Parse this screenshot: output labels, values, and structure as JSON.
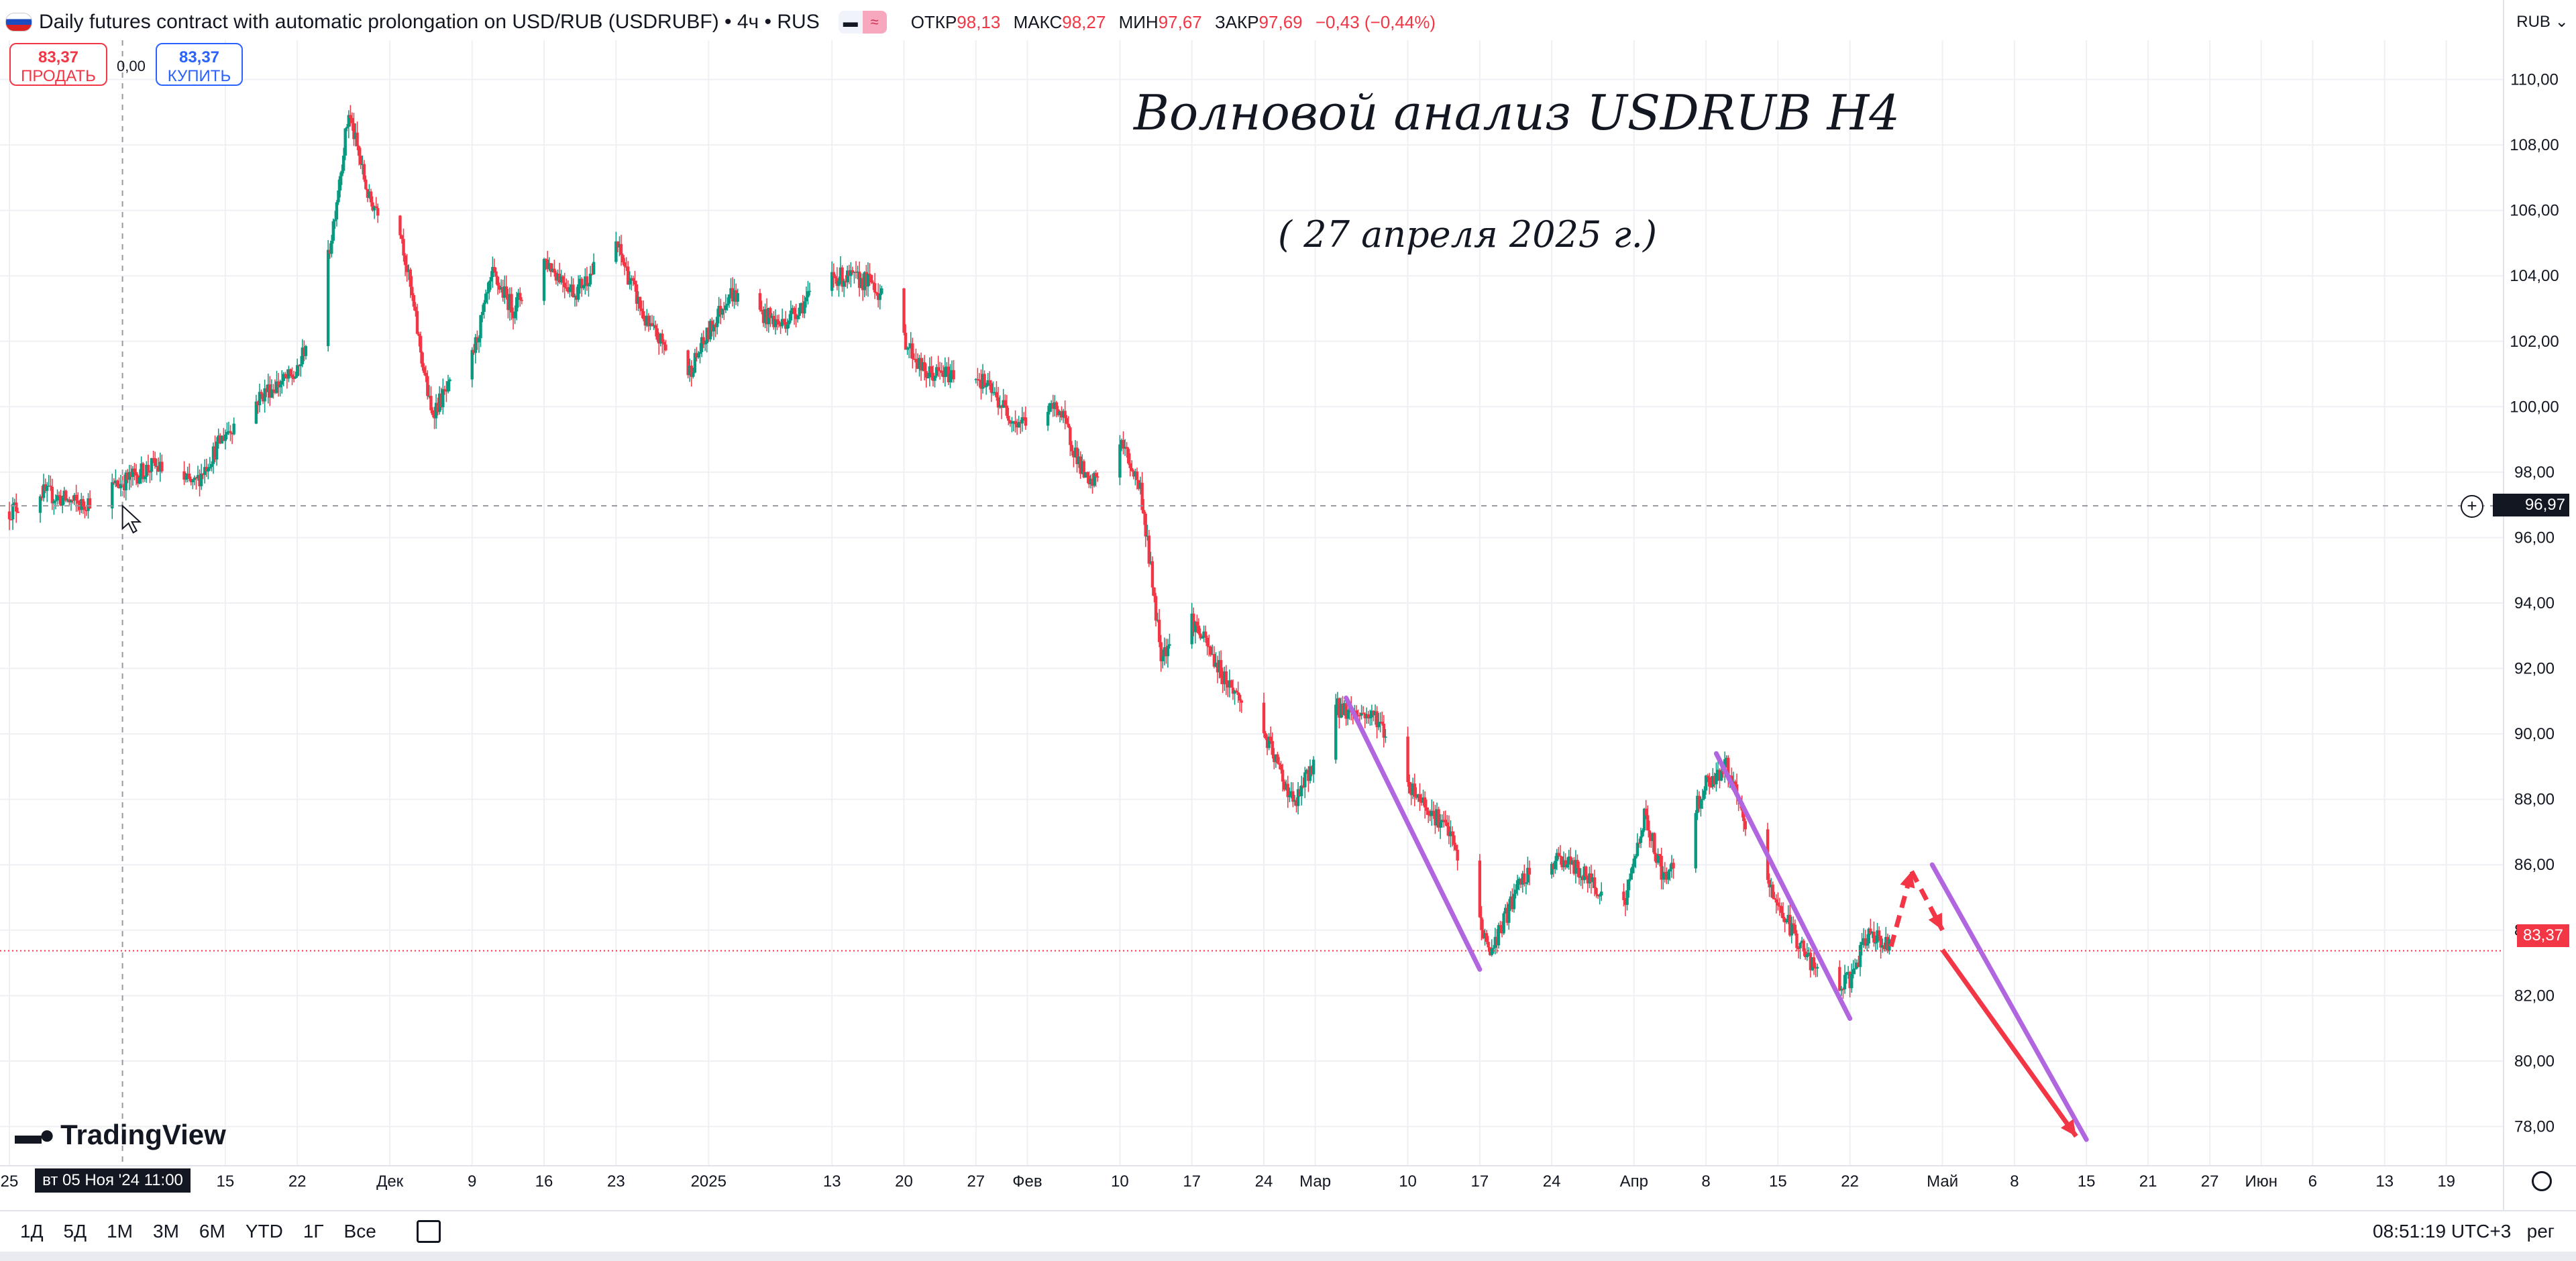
{
  "header": {
    "symbol_title": "Daily futures contract with automatic prolongation on USD/RUB (USDRUBF) • 4ч • RUS",
    "ohlc": [
      {
        "k": "ОТКР",
        "v": "98,13"
      },
      {
        "k": "МАКС",
        "v": "98,27"
      },
      {
        "k": "МИН",
        "v": "97,67"
      },
      {
        "k": "ЗАКР",
        "v": "97,69"
      },
      {
        "k": "",
        "v": "−0,43 (−0,44%)"
      }
    ],
    "pill_icon_1": "minus-icon",
    "pill_icon_2": "wave-icon",
    "currency": "RUB"
  },
  "trade": {
    "sell_price": "83,37",
    "sell_label": "ПРОДАТЬ",
    "spread": "0,00",
    "buy_price": "83,37",
    "buy_label": "КУПИТЬ"
  },
  "annotation": {
    "title": "Волновой анализ USDRUB H4",
    "subtitle": "( 27 апреля 2025  г.)"
  },
  "logo": "TradingView",
  "bottom": {
    "ranges": [
      "1Д",
      "5Д",
      "1М",
      "3М",
      "6М",
      "YTD",
      "1Г",
      "Все"
    ],
    "clock": "08:51:19 UTC+3",
    "session": "рег"
  },
  "crosshair": {
    "x_label": "вт 05 Ноя '24   11:00",
    "y_label": "96,97"
  },
  "last_price_label": "83,37",
  "colors": {
    "up": "#089981",
    "down": "#f23645",
    "wave_line": "#b166e0",
    "arrow": "#f23645",
    "grid": "#eef0f4"
  },
  "chart_data": {
    "type": "candlestick",
    "interval": "4h",
    "ylim": [
      76.8,
      111.2
    ],
    "y_ticks": [
      78,
      80,
      82,
      84,
      86,
      88,
      90,
      92,
      94,
      96,
      98,
      100,
      102,
      104,
      106,
      108,
      110
    ],
    "y_tick_labels": [
      "78,00",
      "80,00",
      "82,00",
      "84,00",
      "86,00",
      "88,00",
      "90,00",
      "92,00",
      "94,00",
      "96,00",
      "98,00",
      "100,00",
      "102,00",
      "104,00",
      "106,00",
      "108,00",
      "110,00"
    ],
    "x_tick_labels": [
      "25",
      "15",
      "22",
      "Дек",
      "9",
      "16",
      "23",
      "2025",
      "13",
      "20",
      "27",
      "Фев",
      "10",
      "17",
      "24",
      "Мар",
      "10",
      "17",
      "24",
      "Апр",
      "8",
      "15",
      "22",
      "Май",
      "8",
      "15",
      "21",
      "27",
      "Июн",
      "6",
      "13",
      "19"
    ],
    "x_ticks_dates": [
      "2024-10-25",
      "2024-11-15",
      "2024-11-22",
      "2024-12-01",
      "2024-12-09",
      "2024-12-16",
      "2024-12-23",
      "2025-01-01",
      "2025-01-13",
      "2025-01-20",
      "2025-01-27",
      "2025-02-01",
      "2025-02-10",
      "2025-02-17",
      "2025-02-24",
      "2025-03-01",
      "2025-03-10",
      "2025-03-17",
      "2025-03-24",
      "2025-04-01",
      "2025-04-08",
      "2025-04-15",
      "2025-04-22",
      "2025-05-01",
      "2025-05-08",
      "2025-05-15",
      "2025-05-21",
      "2025-05-27",
      "2025-06-01",
      "2025-06-06",
      "2025-06-13",
      "2025-06-19"
    ],
    "grid": true,
    "last_price": 83.37,
    "crosshair_price": 96.97,
    "crosshair_date": "2024-11-05",
    "price_path": [
      [
        "2024-10-25",
        96.8
      ],
      [
        "2024-10-28",
        97.4
      ],
      [
        "2024-11-01",
        97.0
      ],
      [
        "2024-11-05",
        97.7
      ],
      [
        "2024-11-08",
        98.2
      ],
      [
        "2024-11-12",
        97.6
      ],
      [
        "2024-11-15",
        99.2
      ],
      [
        "2024-11-19",
        100.5
      ],
      [
        "2024-11-22",
        101.0
      ],
      [
        "2024-11-25",
        104.5
      ],
      [
        "2024-11-27",
        109.0
      ],
      [
        "2024-11-29",
        106.3
      ],
      [
        "2024-12-02",
        105.5
      ],
      [
        "2024-12-05",
        99.8
      ],
      [
        "2024-12-09",
        101.5
      ],
      [
        "2024-12-11",
        104.0
      ],
      [
        "2024-12-13",
        103.0
      ],
      [
        "2024-12-16",
        104.5
      ],
      [
        "2024-12-19",
        103.5
      ],
      [
        "2024-12-23",
        105.0
      ],
      [
        "2024-12-26",
        102.5
      ],
      [
        "2024-12-30",
        101.0
      ],
      [
        "2025-01-03",
        103.5
      ],
      [
        "2025-01-08",
        102.5
      ],
      [
        "2025-01-13",
        104.0
      ],
      [
        "2025-01-17",
        103.8
      ],
      [
        "2025-01-22",
        101.0
      ],
      [
        "2025-01-27",
        101.0
      ],
      [
        "2025-01-31",
        99.5
      ],
      [
        "2025-02-04",
        100.0
      ],
      [
        "2025-02-07",
        97.5
      ],
      [
        "2025-02-10",
        99.0
      ],
      [
        "2025-02-12",
        97.5
      ],
      [
        "2025-02-14",
        92.5
      ],
      [
        "2025-02-17",
        93.5
      ],
      [
        "2025-02-20",
        91.8
      ],
      [
        "2025-02-24",
        90.0
      ],
      [
        "2025-02-27",
        87.8
      ],
      [
        "2025-03-03",
        90.8
      ],
      [
        "2025-03-07",
        90.5
      ],
      [
        "2025-03-10",
        88.5
      ],
      [
        "2025-03-14",
        87.0
      ],
      [
        "2025-03-18",
        83.3
      ],
      [
        "2025-03-21",
        85.5
      ],
      [
        "2025-03-25",
        86.2
      ],
      [
        "2025-03-31",
        84.7
      ],
      [
        "2025-04-02",
        87.5
      ],
      [
        "2025-04-04",
        85.5
      ],
      [
        "2025-04-08",
        88.5
      ],
      [
        "2025-04-10",
        89.0
      ],
      [
        "2025-04-13",
        86.0
      ],
      [
        "2025-04-16",
        84.2
      ],
      [
        "2025-04-20",
        82.0
      ],
      [
        "2025-04-22",
        82.5
      ],
      [
        "2025-04-24",
        84.0
      ],
      [
        "2025-04-26",
        83.4
      ]
    ],
    "wave_lines": [
      {
        "from": [
          "2025-03-04",
          91.1
        ],
        "to": [
          "2025-03-17",
          82.8
        ]
      },
      {
        "from": [
          "2025-04-09",
          89.4
        ],
        "to": [
          "2025-04-22",
          81.3
        ]
      },
      {
        "from": [
          "2025-04-30",
          86.0
        ],
        "to": [
          "2025-05-15",
          77.6
        ]
      }
    ],
    "forecast_arrows": [
      {
        "style": "dashed",
        "from": [
          "2025-04-26",
          83.5
        ],
        "to": [
          "2025-04-28",
          85.8
        ]
      },
      {
        "style": "dashed",
        "from": [
          "2025-04-28",
          85.8
        ],
        "to": [
          "2025-05-01",
          84.0
        ]
      },
      {
        "style": "solid",
        "from": [
          "2025-05-01",
          83.4
        ],
        "to": [
          "2025-05-14",
          77.7
        ]
      }
    ]
  }
}
